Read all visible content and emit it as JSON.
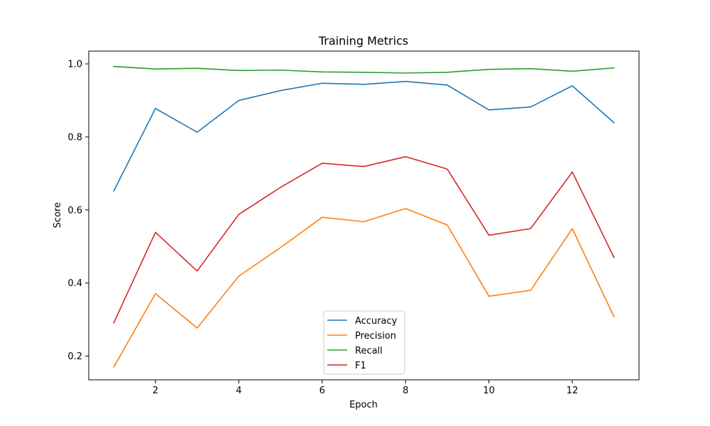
{
  "chart_data": {
    "type": "line",
    "title": "Training Metrics",
    "xlabel": "Epoch",
    "ylabel": "Score",
    "x": [
      1,
      2,
      3,
      4,
      5,
      6,
      7,
      8,
      9,
      10,
      11,
      12,
      13
    ],
    "xlim": [
      0.4,
      13.6
    ],
    "ylim": [
      0.135,
      1.035
    ],
    "x_ticks": [
      2,
      4,
      6,
      8,
      10,
      12
    ],
    "y_ticks": [
      0.2,
      0.4,
      0.6,
      0.8,
      1.0
    ],
    "x_tick_labels": [
      "2",
      "4",
      "6",
      "8",
      "10",
      "12"
    ],
    "y_tick_labels": [
      "0.2",
      "0.4",
      "0.6",
      "0.8",
      "1.0"
    ],
    "grid": false,
    "legend_position": "bottom-center",
    "series": [
      {
        "name": "Accuracy",
        "color": "#1f77b4",
        "values": [
          0.652,
          0.878,
          0.813,
          0.9,
          0.927,
          0.947,
          0.944,
          0.952,
          0.942,
          0.874,
          0.882,
          0.94,
          0.839
        ]
      },
      {
        "name": "Precision",
        "color": "#ff7f0e",
        "values": [
          0.17,
          0.371,
          0.277,
          0.419,
          0.497,
          0.58,
          0.568,
          0.604,
          0.559,
          0.364,
          0.38,
          0.549,
          0.308
        ]
      },
      {
        "name": "Recall",
        "color": "#2ca02c",
        "values": [
          0.993,
          0.986,
          0.988,
          0.982,
          0.983,
          0.978,
          0.977,
          0.975,
          0.977,
          0.985,
          0.987,
          0.98,
          0.989
        ]
      },
      {
        "name": "F1",
        "color": "#d62728",
        "values": [
          0.291,
          0.539,
          0.433,
          0.588,
          0.662,
          0.728,
          0.719,
          0.746,
          0.712,
          0.531,
          0.549,
          0.704,
          0.47
        ]
      }
    ]
  }
}
